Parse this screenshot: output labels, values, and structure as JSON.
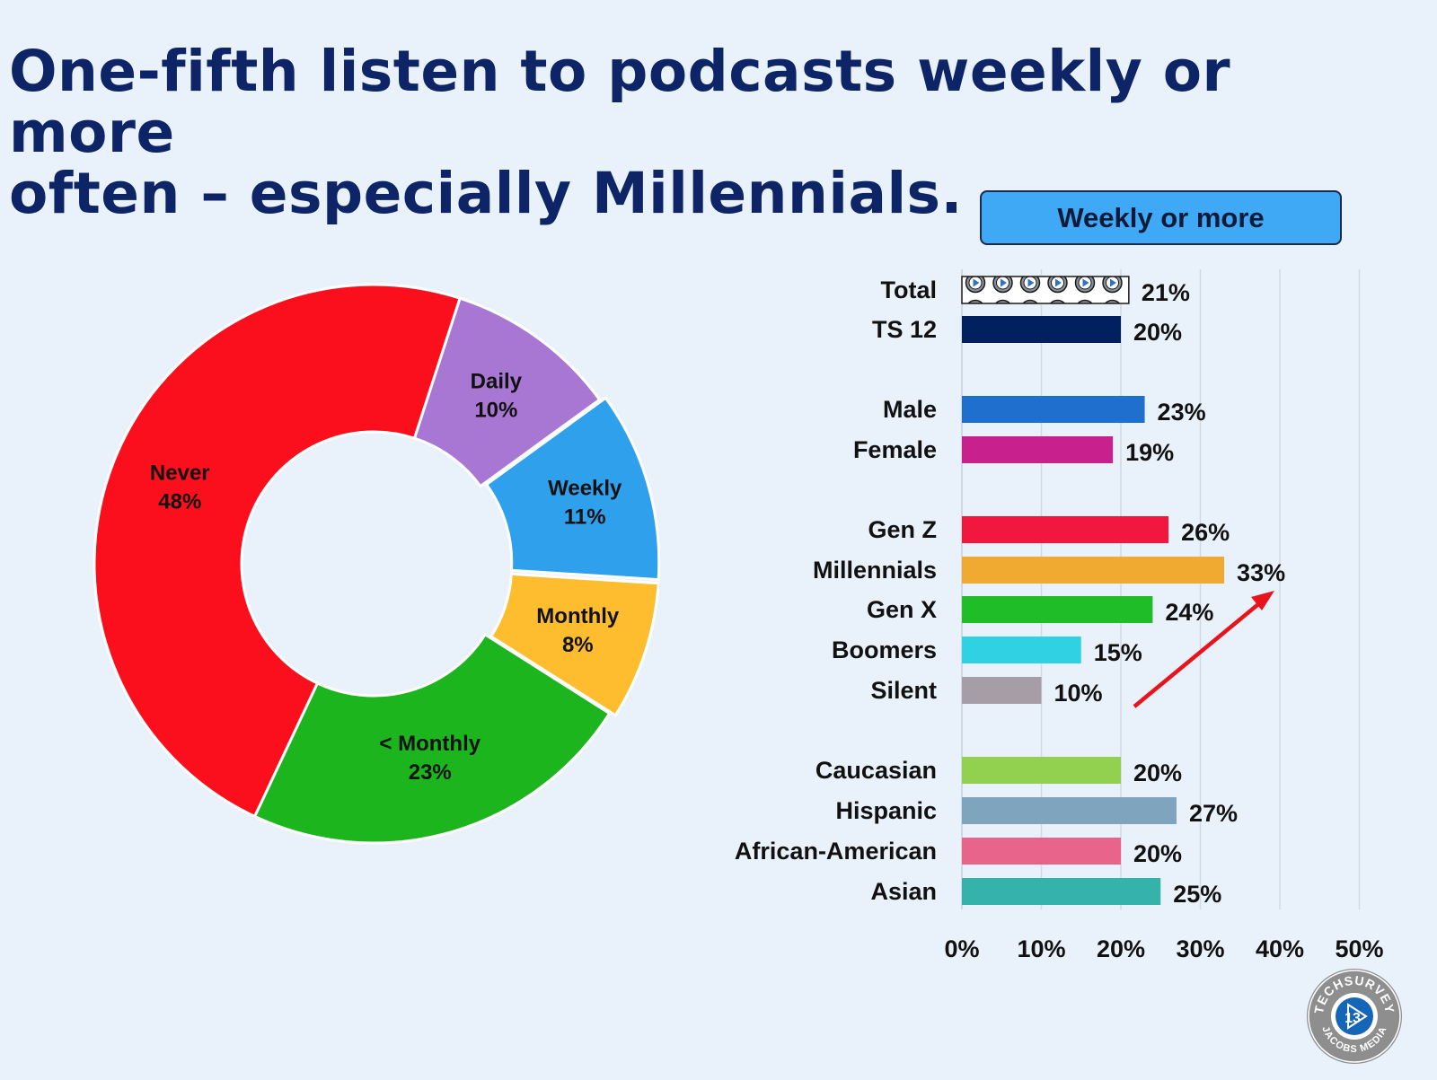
{
  "title": {
    "line1": "One-fifth listen to podcasts weekly or more",
    "line2": "often – especially Millennials."
  },
  "badge": {
    "label": "Weekly or more",
    "color": "#3fa9f5"
  },
  "chart_data": [
    {
      "type": "pie",
      "variant": "donut",
      "slices": [
        {
          "label": "Daily",
          "value": 10,
          "color": "#a877d4"
        },
        {
          "label": "Weekly",
          "value": 11,
          "color": "#2ea0ec"
        },
        {
          "label": "Monthly",
          "value": 8,
          "color": "#fdbd2e"
        },
        {
          "label": "< Monthly",
          "value": 23,
          "color": "#1cb51d"
        },
        {
          "label": "Never",
          "value": 48,
          "color": "#fb0f1c"
        }
      ],
      "value_suffix": "%"
    },
    {
      "type": "bar",
      "orientation": "horizontal",
      "title": "Weekly or more",
      "categories": [
        "Total",
        "TS 12",
        "Male",
        "Female",
        "Gen Z",
        "Millennials",
        "Gen X",
        "Boomers",
        "Silent",
        "Caucasian",
        "Hispanic",
        "African-American",
        "Asian"
      ],
      "values": [
        21,
        20,
        23,
        19,
        26,
        33,
        24,
        15,
        10,
        20,
        27,
        20,
        25
      ],
      "value_labels": [
        "21%",
        "20%",
        "23%",
        "19%",
        "26%",
        "33%",
        "24%",
        "15%",
        "10%",
        "20%",
        "27%",
        "20%",
        "25%"
      ],
      "colors": [
        "pattern-play-icons",
        "#002060",
        "#1f6fcf",
        "#c8218e",
        "#f1173f",
        "#f0aa31",
        "#1fbd27",
        "#2fd1e3",
        "#a69ea6",
        "#92d050",
        "#7fa4bd",
        "#e9648a",
        "#35b2a9"
      ],
      "xlim": [
        0,
        50
      ],
      "xticks": [
        "0%",
        "10%",
        "20%",
        "30%",
        "40%",
        "50%"
      ],
      "grid": true,
      "annotation": "red arrow pointing up-right toward Millennials 33%"
    }
  ],
  "seal": {
    "top_text": "TECHSURVEY",
    "bottom_text": "JACOBS MEDIA",
    "number": "13"
  }
}
